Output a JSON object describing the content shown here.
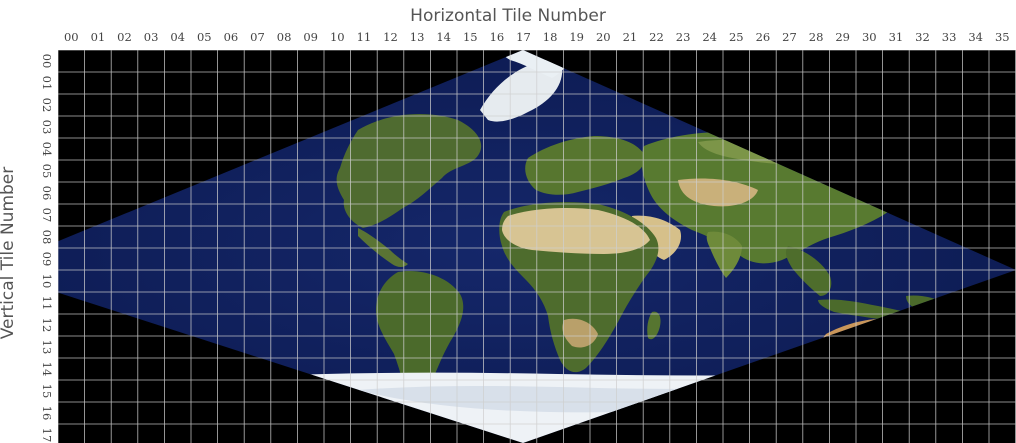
{
  "map": {
    "title": "Horizontal Tile Number",
    "ylabel": "Vertical Tile Number",
    "htiles": [
      "00",
      "01",
      "02",
      "03",
      "04",
      "05",
      "06",
      "07",
      "08",
      "09",
      "10",
      "11",
      "12",
      "13",
      "14",
      "15",
      "16",
      "17",
      "18",
      "19",
      "20",
      "21",
      "22",
      "23",
      "24",
      "25",
      "26",
      "27",
      "28",
      "29",
      "30",
      "31",
      "32",
      "33",
      "34",
      "35"
    ],
    "vtiles": [
      "00",
      "01",
      "02",
      "03",
      "04",
      "05",
      "06",
      "07",
      "08",
      "09",
      "10",
      "11",
      "12",
      "13",
      "14",
      "15",
      "16",
      "17"
    ],
    "projection": "sinusoidal",
    "colors": {
      "background": "#000000",
      "ocean": "#122260",
      "ocean_deep": "#0a1545",
      "land_green": "#4d6a2c",
      "land_desert": "#d4c08c",
      "ice": "#eef2f6",
      "grid": "#cfcfcf"
    },
    "regions": [
      {
        "name": "north-america-landmass"
      },
      {
        "name": "greenland-landmass"
      },
      {
        "name": "south-america-landmass"
      },
      {
        "name": "europe-landmass"
      },
      {
        "name": "africa-landmass"
      },
      {
        "name": "sahara-desert"
      },
      {
        "name": "arabia-landmass"
      },
      {
        "name": "asia-landmass"
      },
      {
        "name": "india-landmass"
      },
      {
        "name": "southeast-asia-landmass"
      },
      {
        "name": "australia-landmass"
      },
      {
        "name": "madagascar-landmass"
      },
      {
        "name": "antarctica-landmass"
      }
    ]
  }
}
